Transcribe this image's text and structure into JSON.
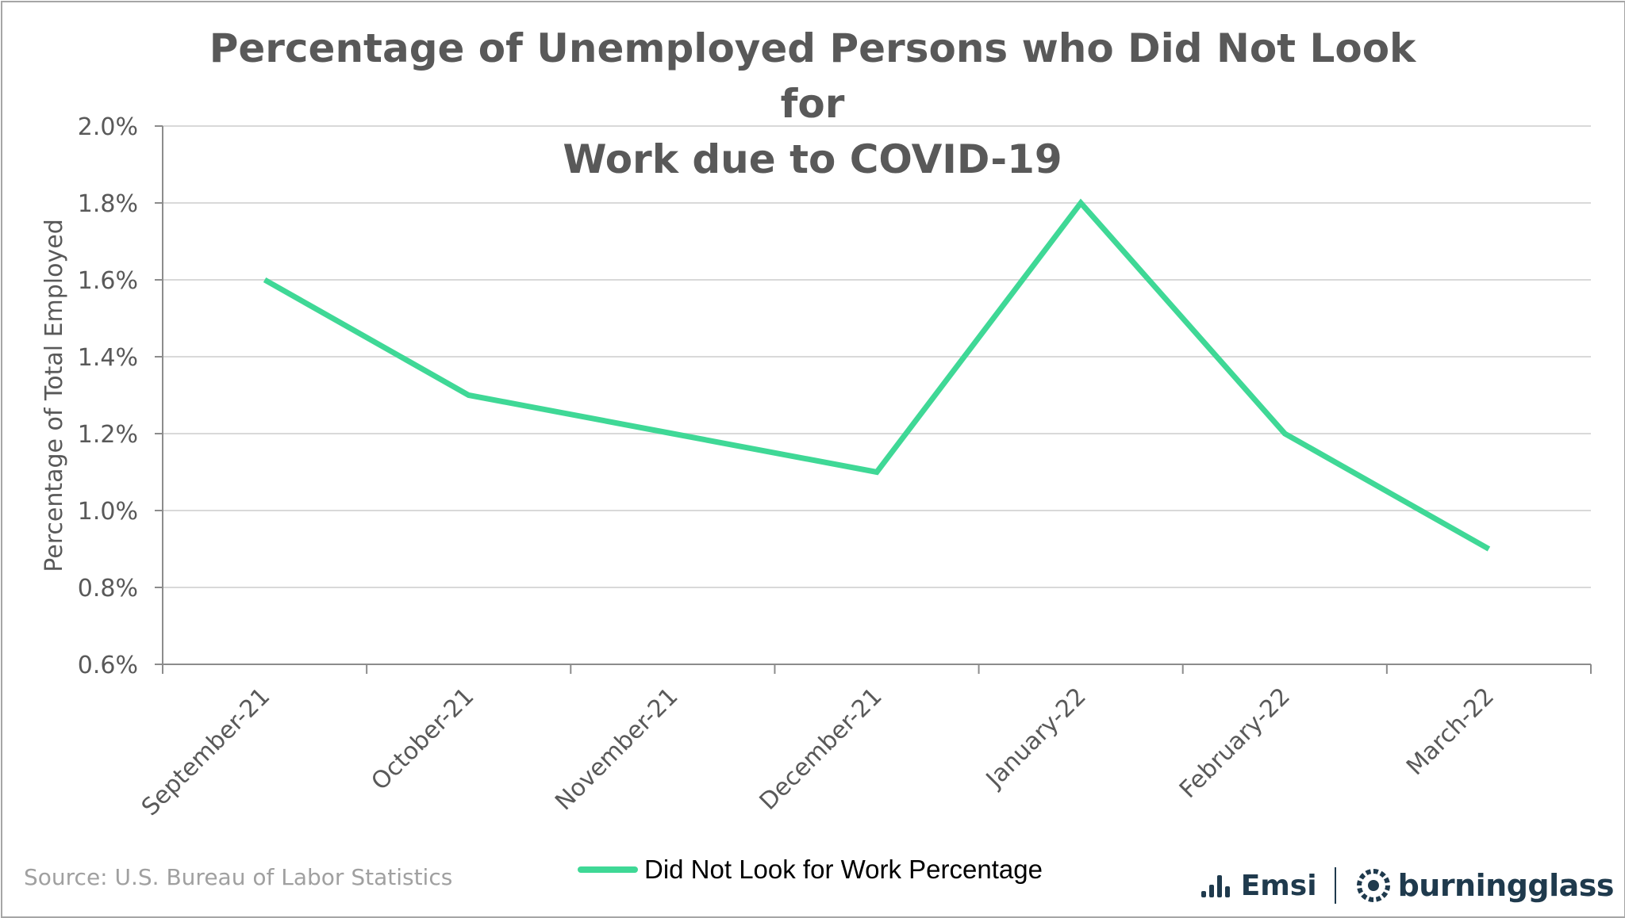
{
  "colors": {
    "series": "#3fd896",
    "grid": "#d9d9d9",
    "axis": "#8c8c8c",
    "label": "#595959",
    "source": "#a0a0a0",
    "logo": "#1f3a4d"
  },
  "chart_data": {
    "type": "line",
    "title": "Percentage of Unemployed Persons who Did Not Look for Work due to COVID-19",
    "title_lines": [
      "Percentage of Unemployed Persons who Did Not Look for",
      "Work due to COVID-19"
    ],
    "xlabel": "",
    "ylabel": "Percentage of Total Employed",
    "categories": [
      "September-21",
      "October-21",
      "November-21",
      "December-21",
      "January-22",
      "February-22",
      "March-22"
    ],
    "series": [
      {
        "name": "Did Not Look for Work Percentage",
        "values": [
          1.6,
          1.3,
          1.2,
          1.1,
          1.8,
          1.2,
          0.9
        ]
      }
    ],
    "ylim": [
      0.6,
      2.0
    ],
    "yticks": [
      0.6,
      0.8,
      1.0,
      1.2,
      1.4,
      1.6,
      1.8,
      2.0
    ],
    "ytick_format": "percent_1dp",
    "grid": true,
    "legend_position": "bottom-center"
  },
  "footer": {
    "source": "Source:  U.S. Bureau of Labor Statistics"
  },
  "logos": {
    "emsi": "Emsi",
    "burningglass": "burningglass"
  }
}
